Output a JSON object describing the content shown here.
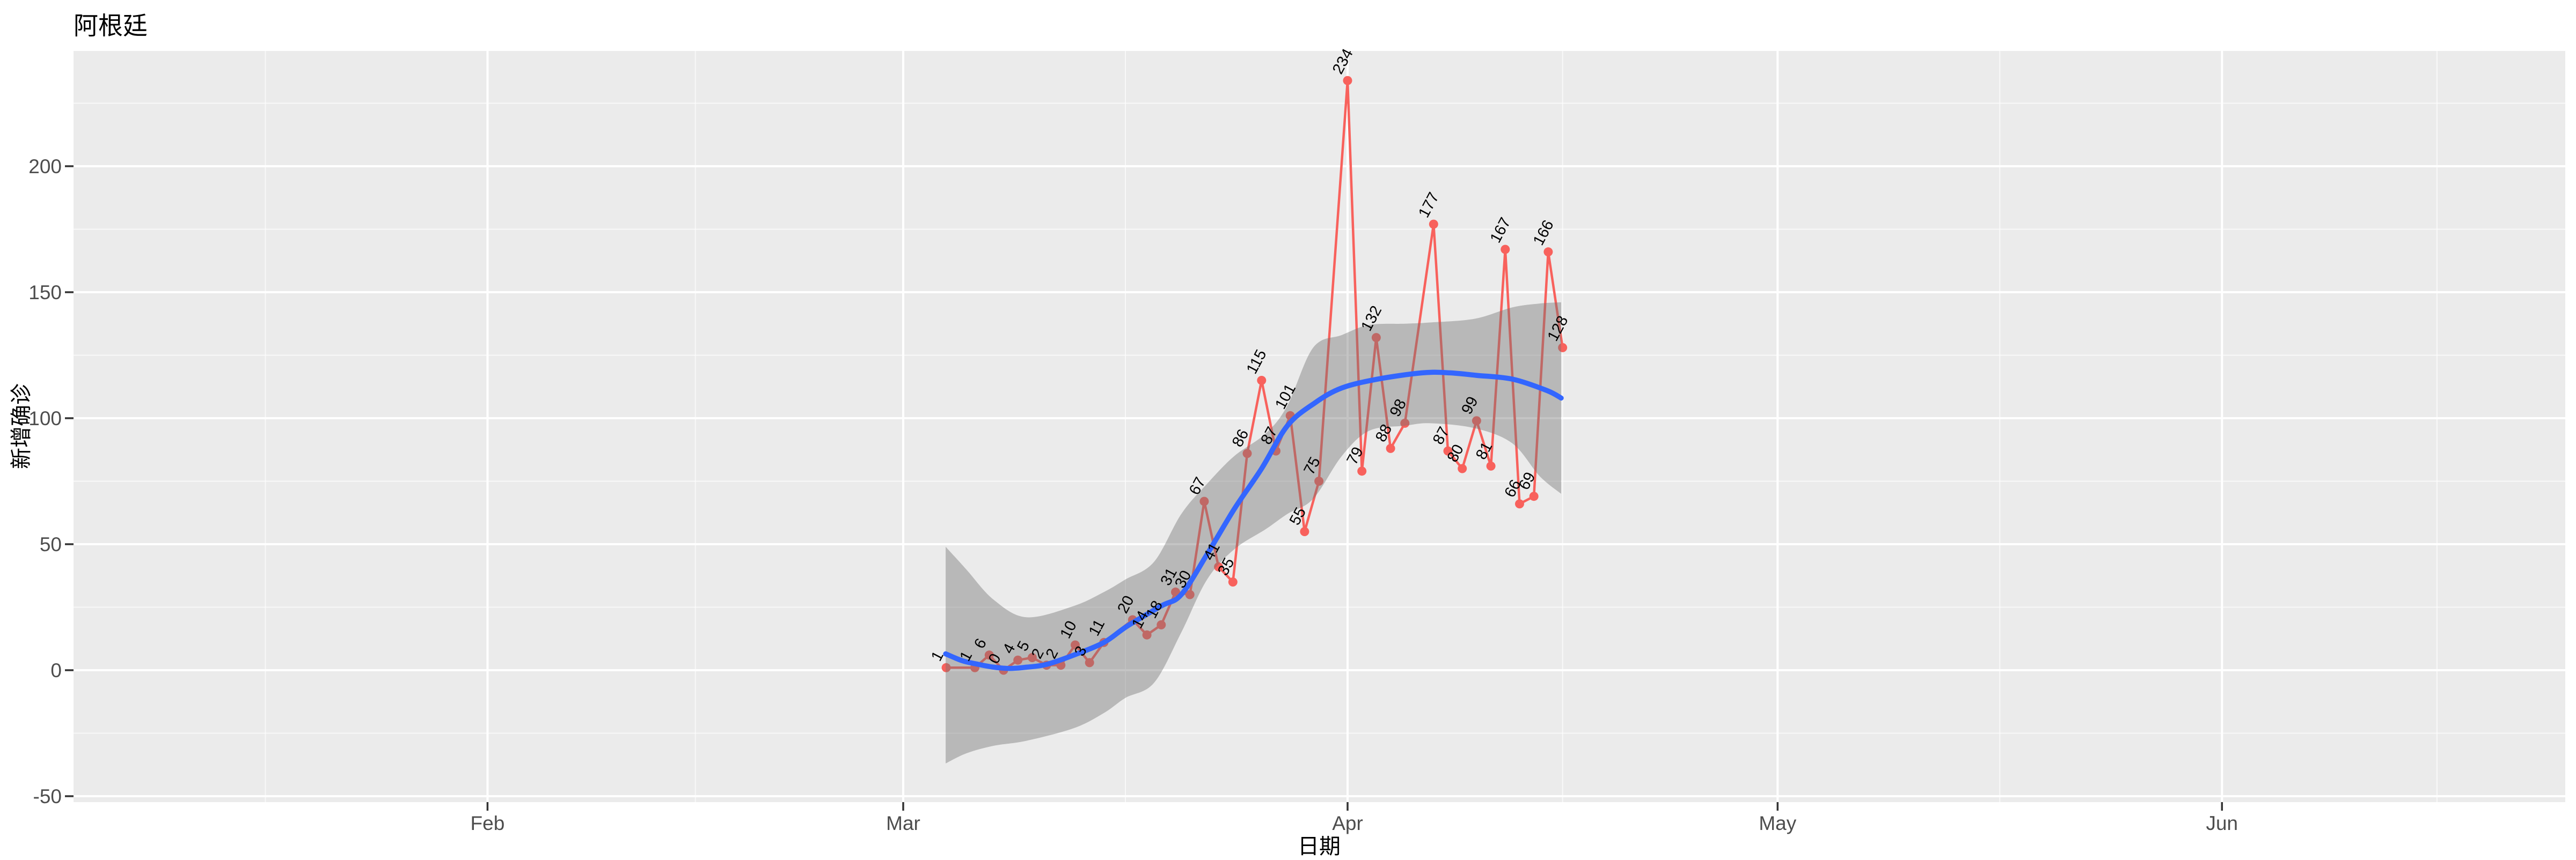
{
  "chart_data": {
    "type": "line",
    "title": "阿根廷",
    "xlabel": "日期",
    "ylabel": "新增确诊",
    "grid": "on",
    "legend": "none",
    "x_axis": {
      "ticks": [
        {
          "label": "Feb",
          "date": "2020-02-01"
        },
        {
          "label": "Mar",
          "date": "2020-03-01"
        },
        {
          "label": "Apr",
          "date": "2020-04-01"
        },
        {
          "label": "May",
          "date": "2020-05-01"
        },
        {
          "label": "Jun",
          "date": "2020-06-01"
        }
      ]
    },
    "y_axis": {
      "ticks": [
        -50,
        0,
        50,
        100,
        150,
        200
      ],
      "minor_ticks": [
        -25,
        25,
        75,
        125,
        175,
        225
      ]
    },
    "series": [
      {
        "name": "daily-new-confirmed",
        "dates": [
          "2020-03-04",
          "2020-03-06",
          "2020-03-07",
          "2020-03-08",
          "2020-03-09",
          "2020-03-10",
          "2020-03-11",
          "2020-03-12",
          "2020-03-13",
          "2020-03-14",
          "2020-03-15",
          "2020-03-17",
          "2020-03-18",
          "2020-03-19",
          "2020-03-20",
          "2020-03-21",
          "2020-03-22",
          "2020-03-23",
          "2020-03-24",
          "2020-03-25",
          "2020-03-26",
          "2020-03-27",
          "2020-03-28",
          "2020-03-29",
          "2020-03-30",
          "2020-04-01",
          "2020-04-02",
          "2020-04-03",
          "2020-04-04",
          "2020-04-05",
          "2020-04-07",
          "2020-04-08",
          "2020-04-09",
          "2020-04-10",
          "2020-04-11",
          "2020-04-12",
          "2020-04-13",
          "2020-04-14",
          "2020-04-15",
          "2020-04-16"
        ],
        "values": [
          1,
          1,
          6,
          0,
          4,
          5,
          2,
          2,
          10,
          3,
          11,
          20,
          14,
          18,
          31,
          30,
          67,
          41,
          35,
          86,
          115,
          87,
          101,
          55,
          75,
          234,
          79,
          132,
          88,
          98,
          177,
          87,
          80,
          99,
          81,
          167,
          66,
          69,
          166,
          128
        ]
      }
    ],
    "smooth_line": {
      "name": "loess-fit",
      "points_day_value": [
        [
          2.96,
          6.5
        ],
        [
          4.1,
          3.8
        ],
        [
          5.1,
          2.5
        ],
        [
          6.2,
          1.3
        ],
        [
          7.4,
          0.7
        ],
        [
          8.6,
          1.2
        ],
        [
          10,
          2.3
        ],
        [
          11.9,
          6
        ],
        [
          14,
          11
        ],
        [
          15.6,
          17.4
        ],
        [
          18,
          25.5
        ],
        [
          19.4,
          30
        ],
        [
          21.2,
          46
        ],
        [
          23.1,
          64
        ],
        [
          25,
          80
        ],
        [
          26.8,
          97
        ],
        [
          28.7,
          106
        ],
        [
          30.6,
          112
        ],
        [
          33.1,
          115.5
        ],
        [
          36.2,
          118
        ],
        [
          38.1,
          118
        ],
        [
          40,
          117
        ],
        [
          42.5,
          115.5
        ],
        [
          44.9,
          111
        ],
        [
          45.9,
          108
        ]
      ]
    },
    "confidence_band": {
      "name": "loess-95ci",
      "points_day_lower_upper": [
        [
          2.96,
          -37,
          49
        ],
        [
          4.4,
          -33,
          40
        ],
        [
          6.3,
          -30,
          28
        ],
        [
          8.6,
          -28,
          21
        ],
        [
          11.9,
          -23,
          25.5
        ],
        [
          14,
          -17,
          31
        ],
        [
          15.5,
          -11,
          36
        ],
        [
          17.5,
          -5,
          43
        ],
        [
          19.4,
          15,
          62
        ],
        [
          21.2,
          36,
          74
        ],
        [
          23.1,
          48,
          85
        ],
        [
          25.3,
          56,
          94
        ],
        [
          26.8,
          62,
          105
        ],
        [
          28.6,
          68,
          128
        ],
        [
          30.6,
          85,
          133
        ],
        [
          32.5,
          95,
          137
        ],
        [
          35,
          97,
          137.5
        ],
        [
          36.8,
          98,
          138
        ],
        [
          39.9,
          96,
          139.5
        ],
        [
          42.5,
          90,
          144
        ],
        [
          44.4,
          77,
          145.5
        ],
        [
          45.9,
          70,
          146
        ]
      ]
    },
    "colors": {
      "panel_background": "#EBEBEB",
      "grid_major": "#FFFFFF",
      "grid_minor": "#FFFFFF",
      "data_line": "#F8615C",
      "data_point": "#F8615C",
      "point_label": "#000000",
      "smooth_line": "#3366FF",
      "ribbon_fill": "rgba(115,115,115,0.42)",
      "tick_mark": "#333333",
      "tick_label": "#4D4D4D",
      "title_text": "#000000"
    }
  }
}
